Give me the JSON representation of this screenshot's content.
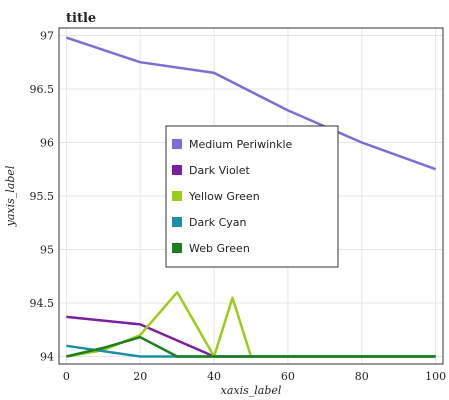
{
  "chart_data": {
    "type": "line",
    "title": "title",
    "xlabel": "xaxis_label",
    "ylabel": "yaxis_label",
    "x": [
      0,
      20,
      40,
      60,
      80,
      100
    ],
    "x_ticks": [
      "0",
      "20",
      "40",
      "60",
      "80",
      "100"
    ],
    "y_ticks": [
      "94",
      "94.5",
      "95",
      "95.5",
      "96",
      "96.5",
      "97"
    ],
    "xlim": [
      -2,
      102
    ],
    "ylim": [
      93.93,
      97.07
    ],
    "grid": true,
    "legend_position": "center-right",
    "series": [
      {
        "name": "Medium Periwinkle",
        "color": "#7b6fd6",
        "x": [
          0,
          20,
          40,
          60,
          80,
          100
        ],
        "values": [
          96.98,
          96.75,
          96.65,
          96.3,
          96.0,
          95.75
        ]
      },
      {
        "name": "Dark Violet",
        "color": "#7b1fa2",
        "x": [
          0,
          20,
          40,
          60,
          80,
          100
        ],
        "values": [
          94.37,
          94.3,
          94.0,
          94.0,
          94.0,
          94.0
        ]
      },
      {
        "name": "Yellow Green",
        "color": "#9ccc1a",
        "x": [
          0,
          10,
          20,
          30,
          40,
          45,
          50,
          60,
          80,
          100
        ],
        "values": [
          94.0,
          94.06,
          94.2,
          94.6,
          94.0,
          94.55,
          94.0,
          94.0,
          94.0,
          94.0
        ]
      },
      {
        "name": "Dark Cyan",
        "color": "#1b8fa6",
        "x": [
          0,
          20,
          40,
          60,
          80,
          100
        ],
        "values": [
          94.1,
          94.0,
          94.0,
          94.0,
          94.0,
          94.0
        ]
      },
      {
        "name": "Web Green",
        "color": "#1e7d1e",
        "x": [
          0,
          10,
          20,
          30,
          40,
          60,
          80,
          100
        ],
        "values": [
          94.0,
          94.08,
          94.18,
          94.0,
          94.0,
          94.0,
          94.0,
          94.0
        ]
      }
    ]
  }
}
